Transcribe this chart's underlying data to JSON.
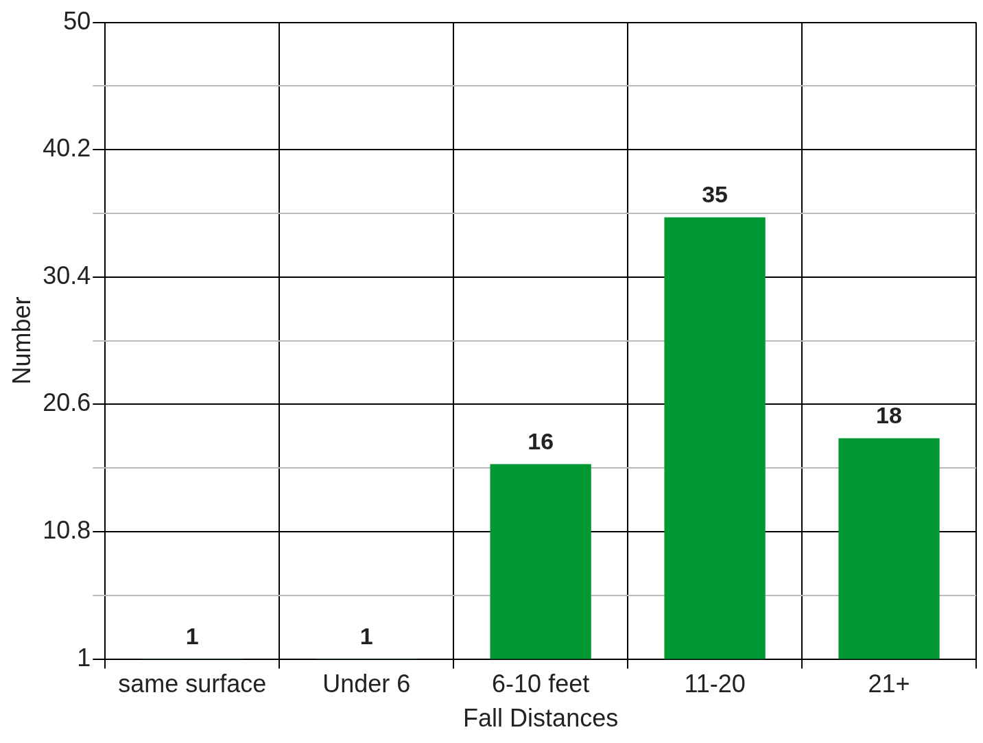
{
  "chart_data": {
    "type": "bar",
    "xlabel": "Fall Distances",
    "ylabel": "Number",
    "categories": [
      "same surface",
      "Under 6",
      "6-10 feet",
      "11-20",
      "21+"
    ],
    "values": [
      1,
      1,
      16,
      35,
      18
    ],
    "color": "#009933",
    "ylim": [
      1,
      50
    ],
    "yticks": [
      1,
      {
        "value": 5.9,
        "label": null
      },
      10.8,
      {
        "value": 15.7,
        "label": null
      },
      20.6,
      {
        "value": 25.5,
        "label": null
      },
      30.4,
      {
        "value": 35.3,
        "label": null
      },
      40.2,
      {
        "value": 45.1,
        "label": null
      },
      50
    ],
    "grid": true,
    "legend": false,
    "data_labels": true
  }
}
